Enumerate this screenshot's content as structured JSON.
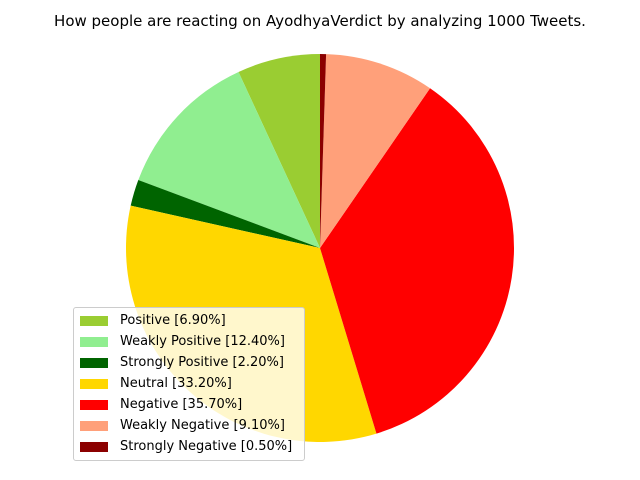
{
  "chart_data": {
    "type": "pie",
    "title": "How people are reacting on AyodhyaVerdict by analyzing 1000 Tweets.",
    "legend_position": "lower-left",
    "start_angle_deg": 90,
    "direction": "counterclockwise",
    "slices": [
      {
        "label": "Positive [6.90%]",
        "value": 6.9,
        "color": "#9acd32"
      },
      {
        "label": "Weakly Positive [12.40%]",
        "value": 12.4,
        "color": "#90ee90"
      },
      {
        "label": "Strongly Positive [2.20%]",
        "value": 2.2,
        "color": "#006400"
      },
      {
        "label": "Neutral [33.20%]",
        "value": 33.2,
        "color": "#ffd700"
      },
      {
        "label": "Negative [35.70%]",
        "value": 35.7,
        "color": "#ff0000"
      },
      {
        "label": "Weakly Negative [9.10%]",
        "value": 9.1,
        "color": "#ffa07a"
      },
      {
        "label": "Strongly Negative [0.50%]",
        "value": 0.5,
        "color": "#8b0000"
      }
    ]
  }
}
